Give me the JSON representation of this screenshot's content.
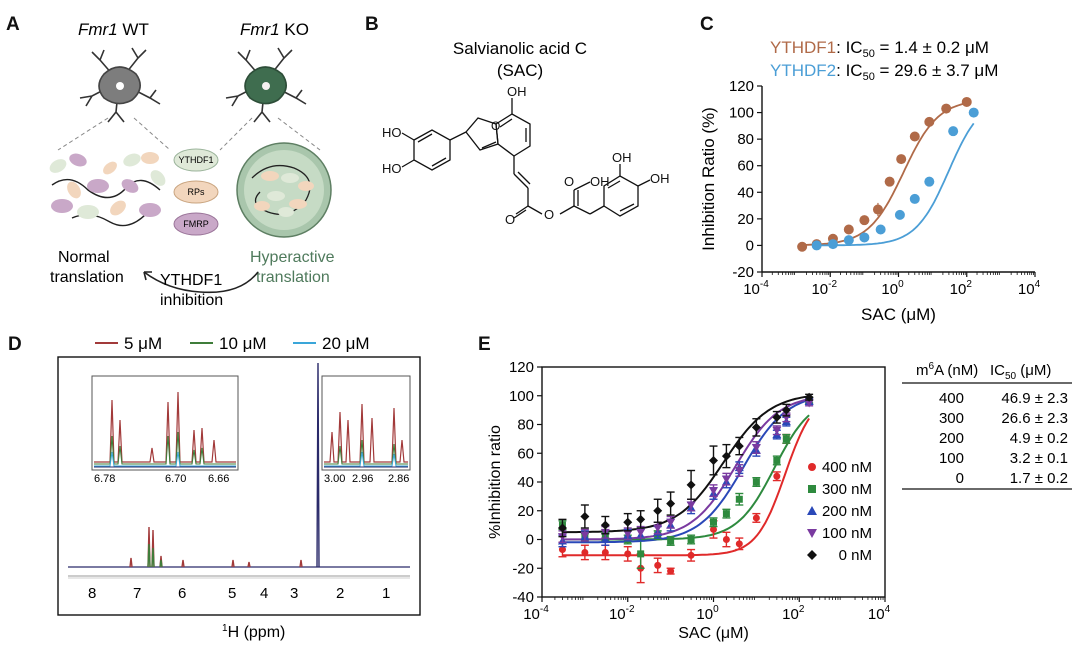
{
  "panels": {
    "A": {
      "label": "A",
      "wt_title_italic": "Fmr1",
      "wt_title_rest": " WT",
      "ko_title_italic": "Fmr1",
      "ko_title_rest": " KO",
      "legend": [
        "YTHDF1",
        "RPs",
        "FMRP"
      ],
      "normal_line1": "Normal",
      "normal_line2": "translation",
      "hyper_line1": "Hyperactive",
      "hyper_line2": "translation",
      "arrow_line1": "YTHDF1",
      "arrow_line2": "inhibition",
      "colors": {
        "green": "#4f7a5c",
        "ythdf1": "#dfe9d8",
        "rps": "#f2d6bd",
        "fmrp": "#c9a8c8"
      }
    },
    "B": {
      "label": "B",
      "title_line1": "Salvianolic acid C",
      "title_line2": "(SAC)",
      "atoms": [
        "HO",
        "HO",
        "OH",
        "O",
        "OH",
        "O",
        "O",
        "O",
        "OH",
        "OH"
      ]
    },
    "C": {
      "label": "C",
      "legend": [
        {
          "name": "YTHDF1",
          "ic_pre": ": IC",
          "ic_sub": "50",
          "value": " = 1.4 ± 0.2 μM",
          "color": "#b06a48"
        },
        {
          "name": "YTHDF2",
          "ic_pre": ": IC",
          "ic_sub": "50",
          "value": " = 29.6 ± 3.7 μM",
          "color": "#4b9ed6"
        }
      ]
    },
    "D": {
      "label": "D",
      "legend": [
        {
          "name": "5 μM",
          "color": "#a23a3a"
        },
        {
          "name": "10 μM",
          "color": "#3f7d3a"
        },
        {
          "name": "20 μM",
          "color": "#3aa6d9"
        }
      ],
      "inset1_ticks": [
        "6.78",
        "6.70",
        "6.66"
      ],
      "inset2_ticks": [
        "3.00",
        "2.96",
        "2.86"
      ],
      "main_ticks": [
        "8",
        "7",
        "6",
        "5",
        "4",
        "3",
        "2",
        "1"
      ],
      "xlabel_sup": "1",
      "xlabel_rest": "H (ppm)"
    },
    "E": {
      "label": "E",
      "table_headers": {
        "m6a_pre": "m",
        "m6a_sup": "6",
        "m6a_rest": "A (nM)",
        "ic_pre": "IC",
        "ic_sub": "50",
        "ic_rest": " (μM)"
      },
      "table_rows": [
        {
          "m6a": "400",
          "ic50": "46.9 ± 2.3"
        },
        {
          "m6a": "300",
          "ic50": "26.6 ± 2.3"
        },
        {
          "m6a": "200",
          "ic50": "4.9 ± 0.2"
        },
        {
          "m6a": "100",
          "ic50": "3.2 ± 0.1"
        },
        {
          "m6a": "0",
          "ic50": "1.7 ± 0.2"
        }
      ]
    }
  },
  "chart_data": [
    {
      "id": "C",
      "type": "scatter",
      "title": "",
      "xlabel": "SAC (μM)",
      "ylabel": "Inhibition Ratio (%)",
      "xscale": "log",
      "xlim_exp": [
        -4,
        4
      ],
      "ylim": [
        -20,
        120
      ],
      "yticks": [
        -20,
        0,
        20,
        40,
        60,
        80,
        100,
        120
      ],
      "xtick_exps": [
        -4,
        -2,
        0,
        2,
        4
      ],
      "series": [
        {
          "name": "YTHDF1",
          "color": "#b06a48",
          "ic50": 1.4,
          "hill": 0.85,
          "top": 110,
          "bottom": 0,
          "points": [
            [
              0.0015,
              -1
            ],
            [
              0.004,
              1
            ],
            [
              0.012,
              5
            ],
            [
              0.035,
              12
            ],
            [
              0.1,
              19
            ],
            [
              0.25,
              27
            ],
            [
              0.55,
              48
            ],
            [
              1.2,
              65
            ],
            [
              3,
              82
            ],
            [
              8,
              93
            ],
            [
              25,
              103
            ],
            [
              100,
              108
            ]
          ]
        },
        {
          "name": "YTHDF2",
          "color": "#4b9ed6",
          "ic50": 29.6,
          "hill": 0.9,
          "top": 112,
          "bottom": 0,
          "points": [
            [
              0.004,
              0
            ],
            [
              0.012,
              1
            ],
            [
              0.035,
              4
            ],
            [
              0.1,
              6
            ],
            [
              0.3,
              12
            ],
            [
              1.1,
              23
            ],
            [
              3,
              35
            ],
            [
              8,
              48
            ],
            [
              40,
              86
            ],
            [
              160,
              100
            ]
          ]
        }
      ]
    },
    {
      "id": "E",
      "type": "scatter",
      "title": "",
      "xlabel": "SAC (μM)",
      "ylabel": "%Inhibition ratio",
      "xscale": "log",
      "xlim_exp": [
        -4,
        4
      ],
      "ylim": [
        -40,
        120
      ],
      "yticks": [
        -40,
        -20,
        0,
        20,
        40,
        60,
        80,
        100,
        120
      ],
      "xtick_exps": [
        -4,
        -2,
        0,
        2,
        4
      ],
      "x": [
        0.0003,
        0.001,
        0.003,
        0.01,
        0.02,
        0.05,
        0.1,
        0.3,
        1,
        2,
        4,
        10,
        30,
        50,
        170
      ],
      "series": [
        {
          "name": "400 nM",
          "color": "#e02a2a",
          "marker": "circle",
          "ic50": 46.9,
          "hill": 1.3,
          "top": 102,
          "bottom": -11,
          "values": [
            -7,
            -9,
            -9,
            -10,
            -20,
            -18,
            -22,
            -11,
            7,
            0,
            -3,
            15,
            44,
            70,
            96
          ],
          "errors": [
            5,
            5,
            5,
            5,
            10,
            5,
            2,
            4,
            6,
            5,
            4,
            3,
            3,
            3,
            2
          ]
        },
        {
          "name": "300 nM",
          "color": "#2e8a3e",
          "marker": "square",
          "ic50": 26.6,
          "hill": 1.0,
          "top": 100,
          "bottom": 0,
          "values": [
            10,
            1,
            2,
            0,
            -10,
            3,
            -1,
            0,
            12,
            18,
            28,
            40,
            55,
            70,
            97
          ],
          "errors": [
            3,
            3,
            3,
            3,
            10,
            3,
            3,
            3,
            3,
            3,
            4,
            3,
            3,
            3,
            2
          ]
        },
        {
          "name": "200 nM",
          "color": "#2a48b8",
          "marker": "triangle",
          "ic50": 4.9,
          "hill": 0.85,
          "top": 102,
          "bottom": -2,
          "values": [
            -1,
            2,
            0,
            3,
            3,
            5,
            10,
            22,
            32,
            40,
            50,
            62,
            73,
            82,
            96
          ],
          "errors": [
            4,
            4,
            4,
            4,
            4,
            4,
            4,
            4,
            4,
            4,
            4,
            4,
            3,
            3,
            2
          ]
        },
        {
          "name": "100 nM",
          "color": "#7a3aa0",
          "marker": "triangle-down",
          "ic50": 3.2,
          "hill": 0.85,
          "top": 101,
          "bottom": 0,
          "values": [
            2,
            3,
            5,
            4,
            5,
            8,
            12,
            24,
            34,
            42,
            48,
            64,
            76,
            85,
            95
          ],
          "errors": [
            4,
            4,
            4,
            4,
            4,
            4,
            4,
            4,
            4,
            4,
            4,
            4,
            3,
            3,
            2
          ]
        },
        {
          "name": "0 nM",
          "color": "#111111",
          "marker": "diamond",
          "ic50": 1.7,
          "hill": 0.8,
          "top": 102,
          "bottom": 5,
          "values": [
            8,
            16,
            10,
            12,
            14,
            20,
            25,
            38,
            55,
            58,
            65,
            78,
            85,
            90,
            99
          ],
          "errors": [
            6,
            8,
            6,
            6,
            6,
            8,
            8,
            10,
            10,
            8,
            6,
            6,
            4,
            4,
            2
          ]
        }
      ]
    }
  ]
}
